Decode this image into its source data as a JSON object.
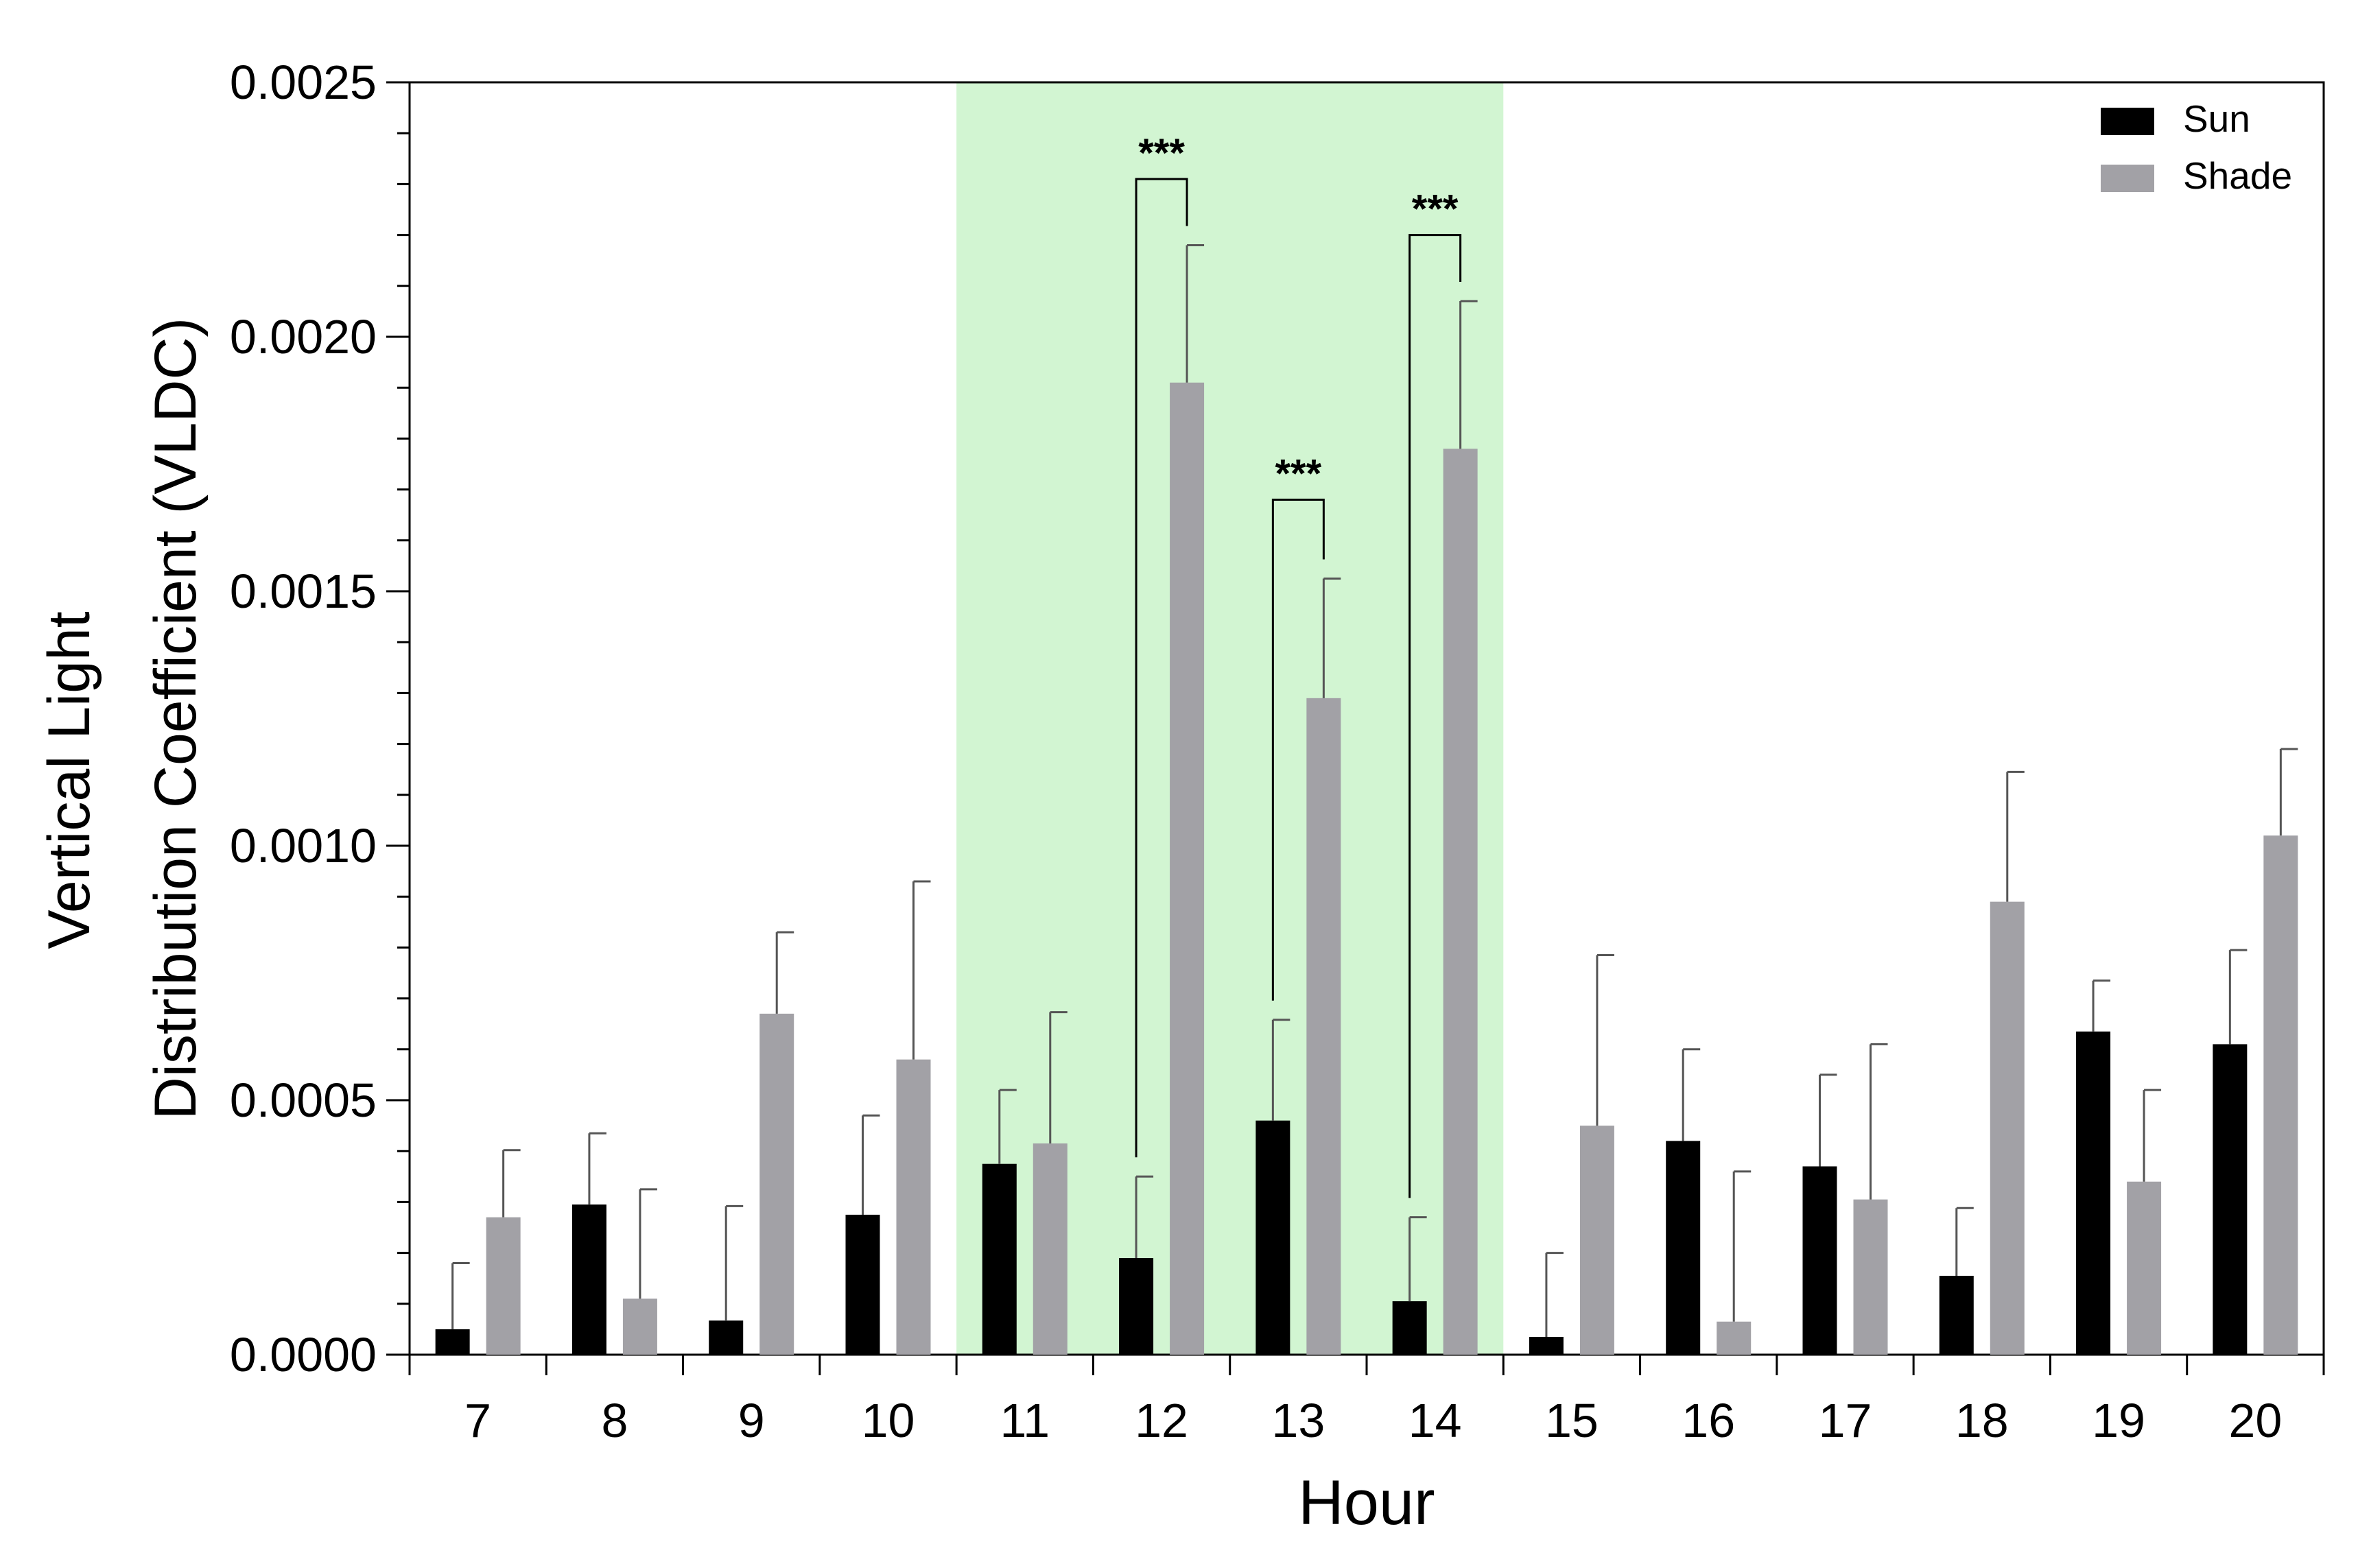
{
  "chart_data": {
    "type": "bar",
    "title": "",
    "xlabel": "Hour",
    "ylabel_lines": [
      "Vertical Light",
      "Distribution Coefficient (VLDC)"
    ],
    "ylim": [
      0,
      0.0025
    ],
    "y_ticks": [
      "0.0000",
      "0.0005",
      "0.0010",
      "0.0015",
      "0.0020",
      "0.0025"
    ],
    "categories": [
      "7",
      "8",
      "9",
      "10",
      "11",
      "12",
      "13",
      "14",
      "15",
      "16",
      "17",
      "18",
      "19",
      "20"
    ],
    "series": [
      {
        "name": "Sun",
        "color": "#000000",
        "values": [
          5e-05,
          0.000295,
          6.7e-05,
          0.000275,
          0.000375,
          0.00019,
          0.00046,
          0.000105,
          3.5e-05,
          0.00042,
          0.00037,
          0.000155,
          0.000635,
          0.00061
        ],
        "errors": [
          0.00013,
          0.00014,
          0.000225,
          0.000195,
          0.000145,
          0.00016,
          0.000198,
          0.000165,
          0.000165,
          0.00018,
          0.00018,
          0.000133,
          0.0001,
          0.000185
        ]
      },
      {
        "name": "Shade",
        "color": "#a2a1a6",
        "values": [
          0.00027,
          0.00011,
          0.00067,
          0.00058,
          0.000415,
          0.00191,
          0.00129,
          0.00178,
          0.00045,
          6.5e-05,
          0.000305,
          0.00089,
          0.00034,
          0.00102
        ],
        "errors": [
          0.000132,
          0.000215,
          0.00016,
          0.00035,
          0.000258,
          0.00027,
          0.000235,
          0.00029,
          0.000335,
          0.000295,
          0.000305,
          0.000255,
          0.00018,
          0.00017
        ]
      }
    ],
    "highlight_band": {
      "from_category": "11",
      "to_category": "14",
      "color": "#d2f5d2"
    },
    "significance": [
      {
        "category": "12",
        "label": "***",
        "bracket_y": 0.00231
      },
      {
        "category": "13",
        "label": "***",
        "bracket_y": 0.00168
      },
      {
        "category": "14",
        "label": "***",
        "bracket_y": 0.0022
      }
    ],
    "legend": {
      "position": "top-right",
      "entries": [
        "Sun",
        "Shade"
      ]
    },
    "grid": false
  }
}
